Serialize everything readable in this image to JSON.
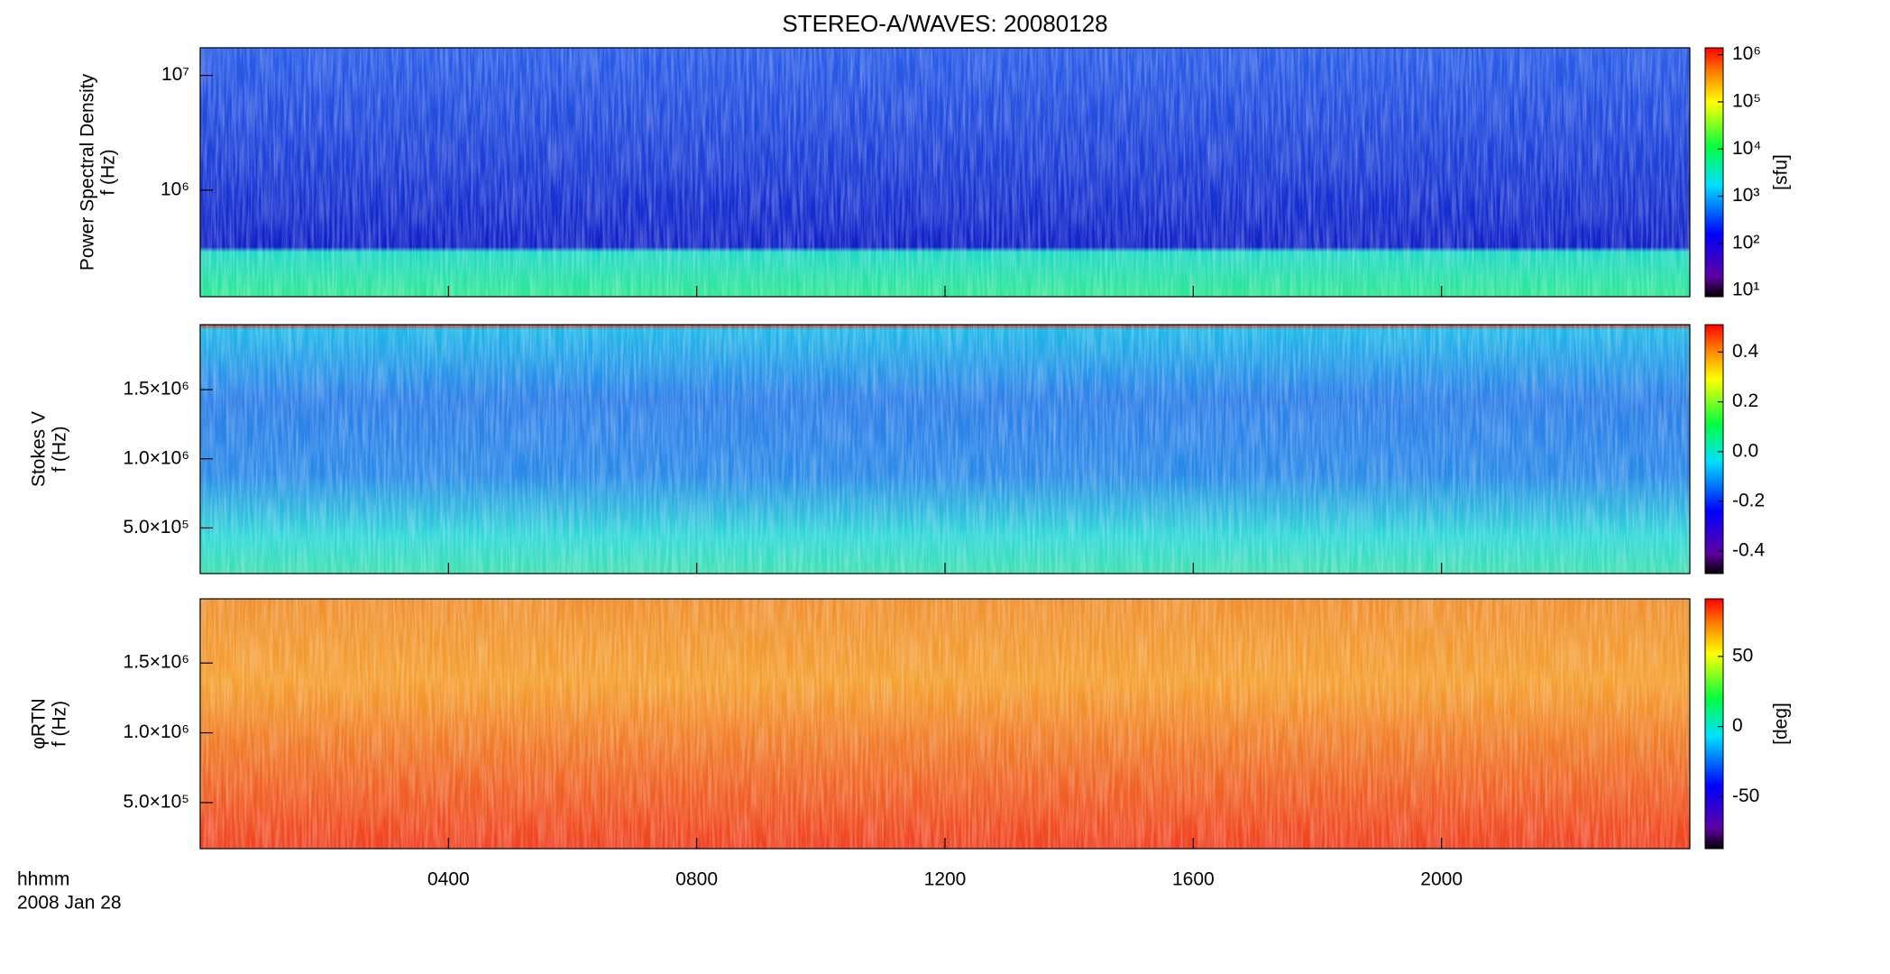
{
  "chart_data": {
    "type": "spectrogram",
    "title": "STEREO-A/WAVES: 20080128",
    "xlabel": "hhmm",
    "date": "2008 Jan 28",
    "xlim": [
      0,
      24
    ],
    "xticks": [
      {
        "value": 4,
        "label": "0400"
      },
      {
        "value": 8,
        "label": "0800"
      },
      {
        "value": 12,
        "label": "1200"
      },
      {
        "value": 16,
        "label": "1600"
      },
      {
        "value": 20,
        "label": "2000"
      }
    ],
    "panels": [
      {
        "ylabel": [
          "Power Spectral Density",
          "f (Hz)"
        ],
        "ylog": true,
        "ylim": [
          118000,
          17400000
        ],
        "yticks": [
          {
            "value": 1000000,
            "label": "10⁶"
          },
          {
            "value": 10000000,
            "label": "10⁷"
          }
        ],
        "clabel": "[sfu]",
        "clog": true,
        "clim": [
          7.4,
          1400000
        ],
        "cticks": [
          {
            "value": 10,
            "label": "10¹"
          },
          {
            "value": 100,
            "label": "10²"
          },
          {
            "value": 1000,
            "label": "10³"
          },
          {
            "value": 10000,
            "label": "10⁴"
          },
          {
            "value": 100000,
            "label": "10⁵"
          },
          {
            "value": 1000000,
            "label": "10⁶"
          }
        ]
      },
      {
        "ylabel": [
          "Stokes V",
          "f (Hz)"
        ],
        "ylog": false,
        "ylim": [
          170000,
          1970000
        ],
        "yticks": [
          {
            "value": 500000,
            "label": "5.0×10⁵"
          },
          {
            "value": 1000000,
            "label": "1.0×10⁶"
          },
          {
            "value": 1500000,
            "label": "1.5×10⁶"
          }
        ],
        "clog": false,
        "clim": [
          -0.49,
          0.51
        ],
        "cticks": [
          -0.4,
          -0.2,
          {
            "value": 0,
            "label": "0.0"
          },
          0.2,
          0.4
        ]
      },
      {
        "ylabel": [
          "φRTN",
          "f (Hz)"
        ],
        "ylog": false,
        "ylim": [
          170000,
          1960000
        ],
        "yticks": [
          {
            "value": 500000,
            "label": "5.0×10⁵"
          },
          {
            "value": 1000000,
            "label": "1.0×10⁶"
          },
          {
            "value": 1500000,
            "label": "1.5×10⁶"
          }
        ],
        "clabel": "[deg]",
        "clog": false,
        "clim": [
          -87,
          91
        ],
        "cticks": [
          -50,
          0,
          50
        ]
      }
    ]
  }
}
